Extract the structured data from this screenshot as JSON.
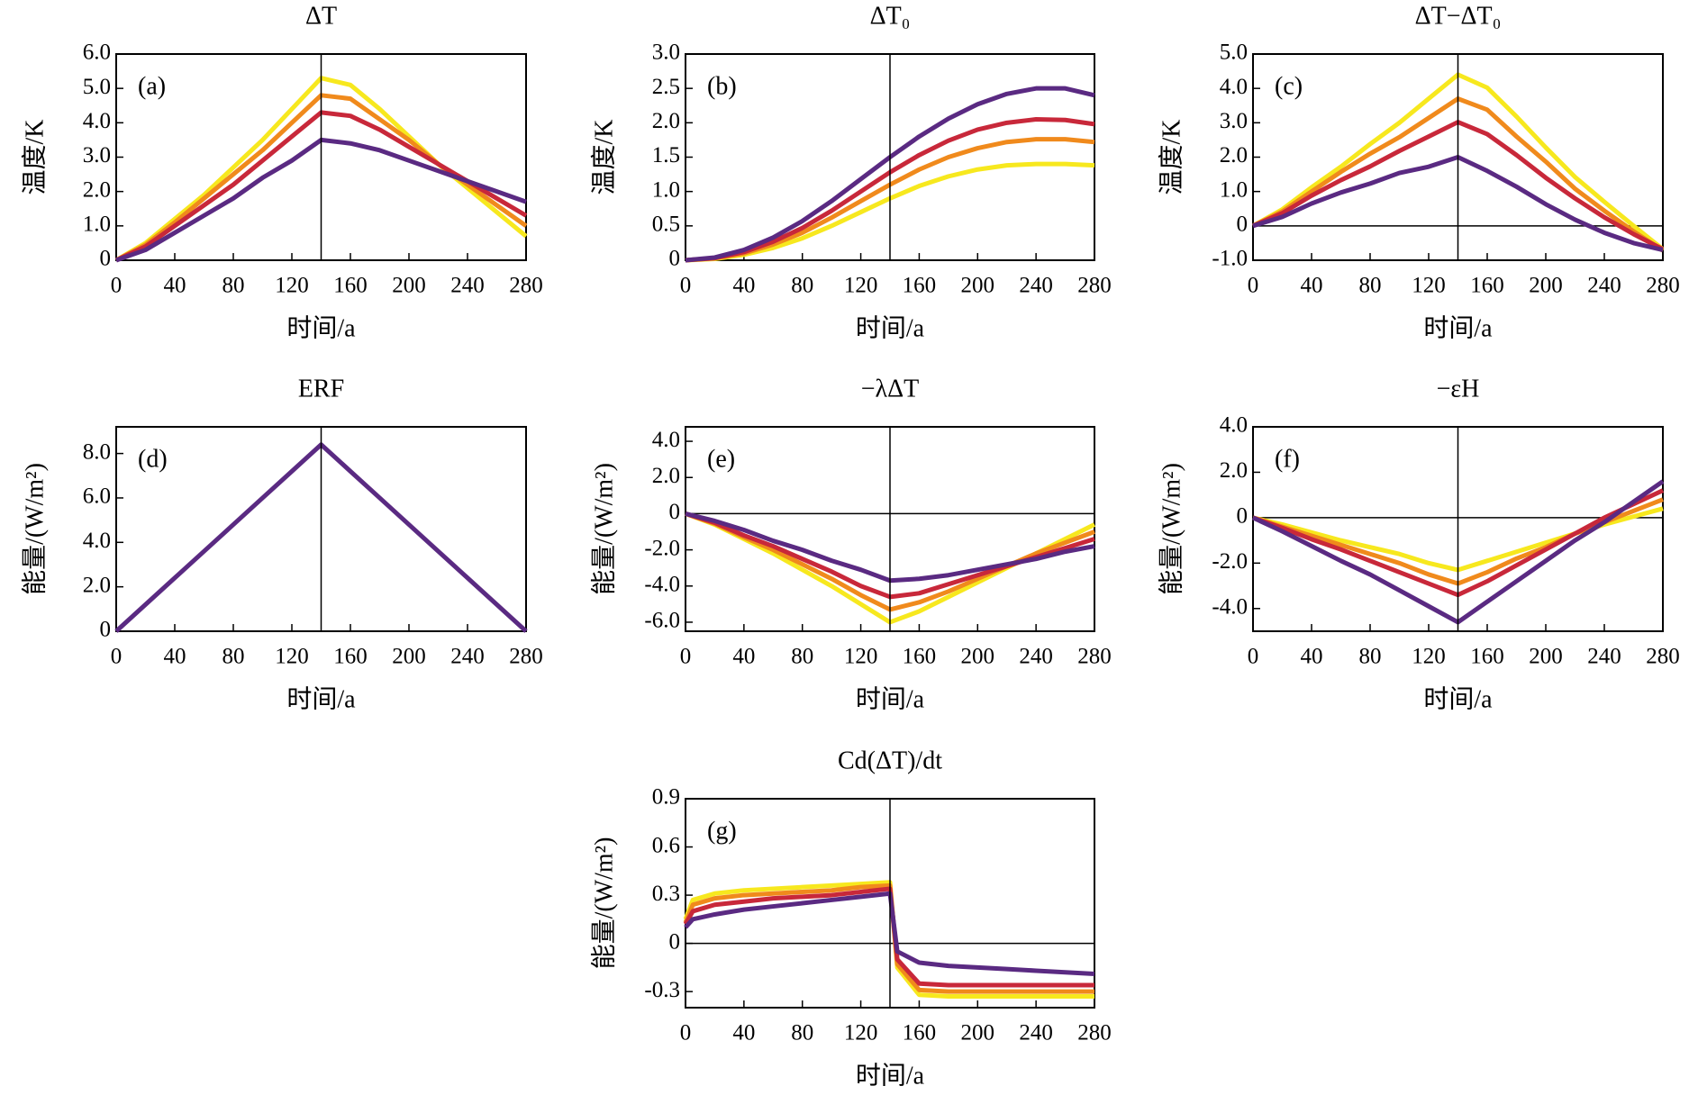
{
  "chart_data": [
    {
      "type": "line",
      "title": "ΔT",
      "panel_label": "(a)",
      "xlabel": "时间/a",
      "ylabel": "温度/K",
      "x": [
        0,
        20,
        40,
        60,
        80,
        100,
        120,
        140,
        160,
        180,
        200,
        220,
        240,
        260,
        280
      ],
      "xlim": [
        0,
        280
      ],
      "xticks": [
        0,
        40,
        80,
        120,
        160,
        200,
        240,
        280
      ],
      "ylim": [
        0,
        6
      ],
      "yticks": [
        0,
        {
          "value": 1,
          "label": "1.0"
        },
        {
          "value": 2,
          "label": "2.0"
        },
        {
          "value": 3,
          "label": "3.0"
        },
        {
          "value": 4,
          "label": "4.0"
        },
        {
          "value": 5,
          "label": "5.0"
        },
        {
          "value": 6,
          "label": "6.0"
        }
      ],
      "vline": 140,
      "series": [
        {
          "color": "#f7e81e",
          "values": [
            0,
            0.5,
            1.2,
            1.9,
            2.7,
            3.5,
            4.4,
            5.3,
            5.1,
            4.4,
            3.6,
            2.8,
            2.1,
            1.4,
            0.7
          ]
        },
        {
          "color": "#f08a1c",
          "values": [
            0,
            0.45,
            1.1,
            1.8,
            2.5,
            3.2,
            4.0,
            4.8,
            4.7,
            4.1,
            3.5,
            2.8,
            2.2,
            1.6,
            1.0
          ]
        },
        {
          "color": "#c8283a",
          "values": [
            0,
            0.4,
            1.0,
            1.6,
            2.2,
            2.9,
            3.6,
            4.3,
            4.2,
            3.8,
            3.3,
            2.8,
            2.3,
            1.8,
            1.3
          ]
        },
        {
          "color": "#5a2a82",
          "values": [
            0,
            0.3,
            0.8,
            1.3,
            1.8,
            2.4,
            2.9,
            3.5,
            3.4,
            3.2,
            2.9,
            2.6,
            2.3,
            2.0,
            1.7
          ]
        }
      ]
    },
    {
      "type": "line",
      "title": "ΔT₀",
      "panel_label": "(b)",
      "xlabel": "时间/a",
      "ylabel": "温度/K",
      "x": [
        0,
        20,
        40,
        60,
        80,
        100,
        120,
        140,
        160,
        180,
        200,
        220,
        240,
        260,
        280
      ],
      "xlim": [
        0,
        280
      ],
      "xticks": [
        0,
        40,
        80,
        120,
        160,
        200,
        240,
        280
      ],
      "ylim": [
        0,
        3
      ],
      "yticks": [
        0,
        0.5,
        {
          "value": 1,
          "label": "1.0"
        },
        1.5,
        {
          "value": 2,
          "label": "2.0"
        },
        2.5,
        {
          "value": 3,
          "label": "3.0"
        }
      ],
      "vline": 140,
      "series": [
        {
          "color": "#f7e81e",
          "values": [
            0,
            0.02,
            0.08,
            0.18,
            0.32,
            0.5,
            0.7,
            0.9,
            1.08,
            1.22,
            1.32,
            1.38,
            1.4,
            1.4,
            1.38
          ]
        },
        {
          "color": "#f08a1c",
          "values": [
            0,
            0.03,
            0.1,
            0.23,
            0.4,
            0.62,
            0.86,
            1.1,
            1.32,
            1.5,
            1.63,
            1.72,
            1.76,
            1.76,
            1.72
          ]
        },
        {
          "color": "#c8283a",
          "values": [
            0,
            0.03,
            0.12,
            0.27,
            0.47,
            0.72,
            1.0,
            1.28,
            1.53,
            1.74,
            1.9,
            2.0,
            2.05,
            2.04,
            1.98
          ]
        },
        {
          "color": "#5a2a82",
          "values": [
            0,
            0.04,
            0.15,
            0.33,
            0.57,
            0.86,
            1.18,
            1.5,
            1.8,
            2.06,
            2.27,
            2.42,
            2.5,
            2.5,
            2.4
          ]
        }
      ]
    },
    {
      "type": "line",
      "title": "ΔT−ΔT₀",
      "panel_label": "(c)",
      "xlabel": "时间/a",
      "ylabel": "温度/K",
      "x": [
        0,
        20,
        40,
        60,
        80,
        100,
        120,
        140,
        160,
        180,
        200,
        220,
        240,
        260,
        280
      ],
      "xlim": [
        0,
        280
      ],
      "xticks": [
        0,
        40,
        80,
        120,
        160,
        200,
        240,
        280
      ],
      "ylim": [
        -1,
        5
      ],
      "yticks": [
        {
          "value": -1,
          "label": "-1.0"
        },
        0,
        {
          "value": 1,
          "label": "1.0"
        },
        {
          "value": 2,
          "label": "2.0"
        },
        {
          "value": 3,
          "label": "3.0"
        },
        {
          "value": 4,
          "label": "4.0"
        },
        {
          "value": 5,
          "label": "5.0"
        }
      ],
      "vline": 140,
      "hline": 0,
      "series": [
        {
          "color": "#f7e81e",
          "values": [
            0,
            0.48,
            1.12,
            1.72,
            2.38,
            3.0,
            3.7,
            4.4,
            4.02,
            3.18,
            2.28,
            1.42,
            0.7,
            0.0,
            -0.68
          ]
        },
        {
          "color": "#f08a1c",
          "values": [
            0,
            0.42,
            1.0,
            1.57,
            2.1,
            2.58,
            3.14,
            3.7,
            3.38,
            2.6,
            1.87,
            1.08,
            0.44,
            -0.16,
            -0.72
          ]
        },
        {
          "color": "#c8283a",
          "values": [
            0,
            0.37,
            0.88,
            1.33,
            1.73,
            2.18,
            2.6,
            3.02,
            2.67,
            2.06,
            1.4,
            0.8,
            0.25,
            -0.24,
            -0.68
          ]
        },
        {
          "color": "#5a2a82",
          "values": [
            0,
            0.26,
            0.65,
            0.97,
            1.23,
            1.54,
            1.72,
            2.0,
            1.6,
            1.14,
            0.63,
            0.18,
            -0.2,
            -0.5,
            -0.7
          ]
        }
      ]
    },
    {
      "type": "line",
      "title": "ERF",
      "panel_label": "(d)",
      "xlabel": "时间/a",
      "ylabel": "能量/(W/m²)",
      "x": [
        0,
        20,
        40,
        60,
        80,
        100,
        120,
        140,
        160,
        180,
        200,
        220,
        240,
        260,
        280
      ],
      "xlim": [
        0,
        280
      ],
      "xticks": [
        0,
        40,
        80,
        120,
        160,
        200,
        240,
        280
      ],
      "ylim": [
        0,
        9.2
      ],
      "yticks": [
        0,
        {
          "value": 2,
          "label": "2.0"
        },
        {
          "value": 4,
          "label": "4.0"
        },
        {
          "value": 6,
          "label": "6.0"
        },
        {
          "value": 8,
          "label": "8.0"
        }
      ],
      "vline": 140,
      "series": [
        {
          "color": "#5a2a82",
          "values": [
            0,
            1.2,
            2.4,
            3.6,
            4.8,
            6.0,
            7.2,
            8.4,
            7.2,
            6.0,
            4.8,
            3.6,
            2.4,
            1.2,
            0
          ]
        }
      ]
    },
    {
      "type": "line",
      "title": "−λΔT",
      "panel_label": "(e)",
      "xlabel": "时间/a",
      "ylabel": "能量/(W/m²)",
      "x": [
        0,
        20,
        40,
        60,
        80,
        100,
        120,
        140,
        160,
        180,
        200,
        220,
        240,
        260,
        280
      ],
      "xlim": [
        0,
        280
      ],
      "xticks": [
        0,
        40,
        80,
        120,
        160,
        200,
        240,
        280
      ],
      "ylim": [
        -6.5,
        4.8
      ],
      "yticks": [
        {
          "value": -6,
          "label": "-6.0"
        },
        {
          "value": -4,
          "label": "-4.0"
        },
        {
          "value": -2,
          "label": "-2.0"
        },
        0,
        {
          "value": 2,
          "label": "2.0"
        },
        {
          "value": 4,
          "label": "4.0"
        }
      ],
      "vline": 140,
      "hline": 0,
      "series": [
        {
          "color": "#f7e81e",
          "values": [
            0,
            -0.6,
            -1.4,
            -2.2,
            -3.1,
            -4.0,
            -5.0,
            -6.0,
            -5.4,
            -4.6,
            -3.8,
            -3.0,
            -2.2,
            -1.4,
            -0.6
          ]
        },
        {
          "color": "#f08a1c",
          "values": [
            0,
            -0.55,
            -1.3,
            -2.0,
            -2.8,
            -3.6,
            -4.5,
            -5.3,
            -4.9,
            -4.3,
            -3.6,
            -2.9,
            -2.2,
            -1.6,
            -1.0
          ]
        },
        {
          "color": "#c8283a",
          "values": [
            0,
            -0.5,
            -1.2,
            -1.8,
            -2.5,
            -3.2,
            -4.0,
            -4.6,
            -4.4,
            -3.9,
            -3.4,
            -2.9,
            -2.4,
            -1.9,
            -1.4
          ]
        },
        {
          "color": "#5a2a82",
          "values": [
            0,
            -0.4,
            -0.9,
            -1.5,
            -2.0,
            -2.6,
            -3.1,
            -3.7,
            -3.6,
            -3.4,
            -3.1,
            -2.8,
            -2.5,
            -2.1,
            -1.8
          ]
        }
      ]
    },
    {
      "type": "line",
      "title": "−εH",
      "panel_label": "(f)",
      "xlabel": "时间/a",
      "ylabel": "能量/(W/m²)",
      "x": [
        0,
        20,
        40,
        60,
        80,
        100,
        120,
        140,
        160,
        180,
        200,
        220,
        240,
        260,
        280
      ],
      "xlim": [
        0,
        280
      ],
      "xticks": [
        0,
        40,
        80,
        120,
        160,
        200,
        240,
        280
      ],
      "ylim": [
        -5,
        4
      ],
      "yticks": [
        {
          "value": -4,
          "label": "-4.0"
        },
        {
          "value": -2,
          "label": "-2.0"
        },
        0,
        {
          "value": 2,
          "label": "2.0"
        },
        {
          "value": 4,
          "label": "4.0"
        }
      ],
      "vline": 140,
      "hline": 0,
      "series": [
        {
          "color": "#f7e81e",
          "values": [
            0,
            -0.3,
            -0.65,
            -1.0,
            -1.3,
            -1.6,
            -2.0,
            -2.3,
            -1.9,
            -1.5,
            -1.1,
            -0.7,
            -0.3,
            0.05,
            0.4
          ]
        },
        {
          "color": "#f08a1c",
          "values": [
            0,
            -0.4,
            -0.8,
            -1.2,
            -1.6,
            -2.0,
            -2.5,
            -2.9,
            -2.4,
            -1.8,
            -1.3,
            -0.7,
            -0.2,
            0.3,
            0.8
          ]
        },
        {
          "color": "#c8283a",
          "values": [
            0,
            -0.45,
            -0.95,
            -1.4,
            -1.9,
            -2.4,
            -2.9,
            -3.4,
            -2.8,
            -2.1,
            -1.4,
            -0.7,
            0.0,
            0.6,
            1.2
          ]
        },
        {
          "color": "#5a2a82",
          "values": [
            0,
            -0.6,
            -1.25,
            -1.9,
            -2.5,
            -3.2,
            -3.9,
            -4.6,
            -3.7,
            -2.8,
            -1.9,
            -1.0,
            -0.2,
            0.7,
            1.6
          ]
        }
      ]
    },
    {
      "type": "line",
      "title": "Cd(ΔT)/dt",
      "panel_label": "(g)",
      "xlabel": "时间/a",
      "ylabel": "能量/(W/m²)",
      "x": [
        0,
        5,
        20,
        40,
        60,
        80,
        100,
        120,
        140,
        145,
        160,
        180,
        200,
        220,
        240,
        260,
        280
      ],
      "xlim": [
        0,
        280
      ],
      "xticks": [
        0,
        40,
        80,
        120,
        160,
        200,
        240,
        280
      ],
      "ylim": [
        -0.4,
        0.9
      ],
      "yticks": [
        -0.3,
        0,
        0.3,
        0.6,
        0.9
      ],
      "vline": 140,
      "hline": 0,
      "series": [
        {
          "color": "#f7e81e",
          "values": [
            0.15,
            0.27,
            0.31,
            0.33,
            0.34,
            0.35,
            0.36,
            0.37,
            0.38,
            -0.15,
            -0.32,
            -0.33,
            -0.33,
            -0.33,
            -0.33,
            -0.33,
            -0.33
          ]
        },
        {
          "color": "#f08a1c",
          "values": [
            0.13,
            0.24,
            0.28,
            0.3,
            0.31,
            0.32,
            0.33,
            0.35,
            0.36,
            -0.13,
            -0.29,
            -0.3,
            -0.3,
            -0.3,
            -0.3,
            -0.3,
            -0.3
          ]
        },
        {
          "color": "#c8283a",
          "values": [
            0.12,
            0.2,
            0.24,
            0.26,
            0.28,
            0.29,
            0.3,
            0.32,
            0.34,
            -0.1,
            -0.25,
            -0.26,
            -0.26,
            -0.26,
            -0.26,
            -0.26,
            -0.26
          ]
        },
        {
          "color": "#5a2a82",
          "values": [
            0.1,
            0.15,
            0.18,
            0.21,
            0.23,
            0.25,
            0.27,
            0.29,
            0.31,
            -0.05,
            -0.12,
            -0.14,
            -0.15,
            -0.16,
            -0.17,
            -0.18,
            -0.19
          ]
        }
      ]
    }
  ]
}
